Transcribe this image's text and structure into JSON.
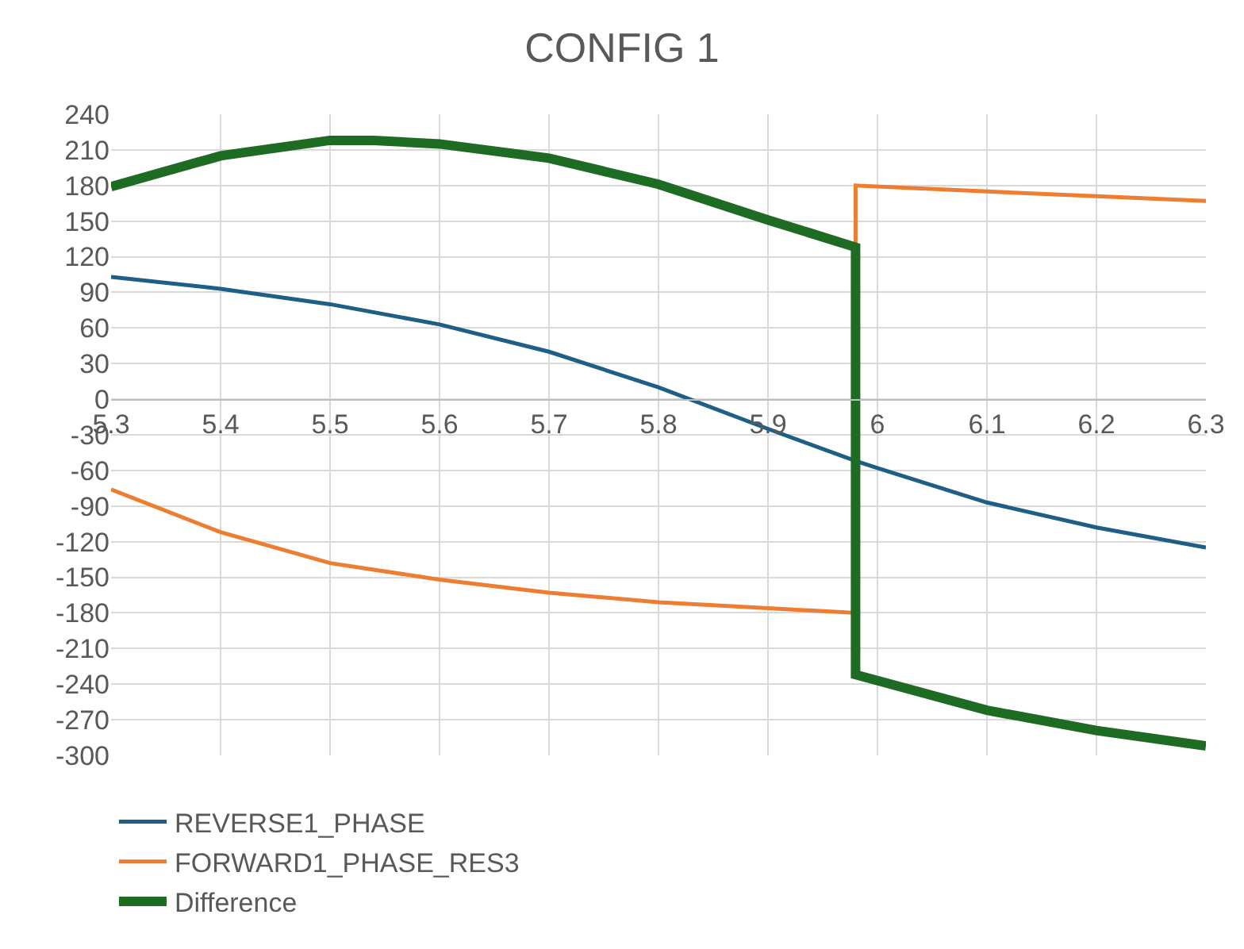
{
  "chart_data": {
    "type": "line",
    "title": "CONFIG 1",
    "xlim": [
      5.3,
      6.3
    ],
    "xticks": [
      5.3,
      5.4,
      5.5,
      5.6,
      5.7,
      5.8,
      5.9,
      6,
      6.1,
      6.2,
      6.3
    ],
    "ylim": [
      -300,
      240
    ],
    "yticks": [
      -300,
      -270,
      -240,
      -210,
      -180,
      -150,
      -120,
      -90,
      -60,
      -30,
      0,
      30,
      60,
      90,
      120,
      150,
      180,
      210,
      240
    ],
    "grid": true,
    "legend": "bottom",
    "marker": "none",
    "line_style": "solid",
    "series": [
      {
        "name": "REVERSE1_PHASE",
        "color": "#1f5f85",
        "x": [
          5.3,
          5.4,
          5.5,
          5.6,
          5.7,
          5.8,
          5.9,
          5.98,
          6.0,
          6.1,
          6.2,
          6.3
        ],
        "values": [
          103,
          93,
          80,
          63,
          40,
          10,
          -25,
          -52,
          -58,
          -87,
          -108,
          -125
        ]
      },
      {
        "name": "FORWARD1_PHASE_RES3",
        "color": "#ed7d31",
        "x": [
          5.3,
          5.4,
          5.5,
          5.6,
          5.7,
          5.8,
          5.9,
          5.98,
          5.98,
          6.1,
          6.2,
          6.3
        ],
        "values": [
          -76,
          -112,
          -138,
          -152,
          -163,
          -171,
          -176,
          -180,
          180,
          175,
          171,
          167
        ]
      },
      {
        "name": "Difference",
        "color": "#1e6b24",
        "x": [
          5.3,
          5.4,
          5.5,
          5.54,
          5.6,
          5.7,
          5.8,
          5.9,
          5.98,
          5.98,
          6.1,
          6.2,
          6.3
        ],
        "values": [
          179,
          205,
          218,
          218,
          215,
          203,
          181,
          151,
          128,
          -232,
          -262,
          -279,
          -292
        ]
      }
    ]
  }
}
